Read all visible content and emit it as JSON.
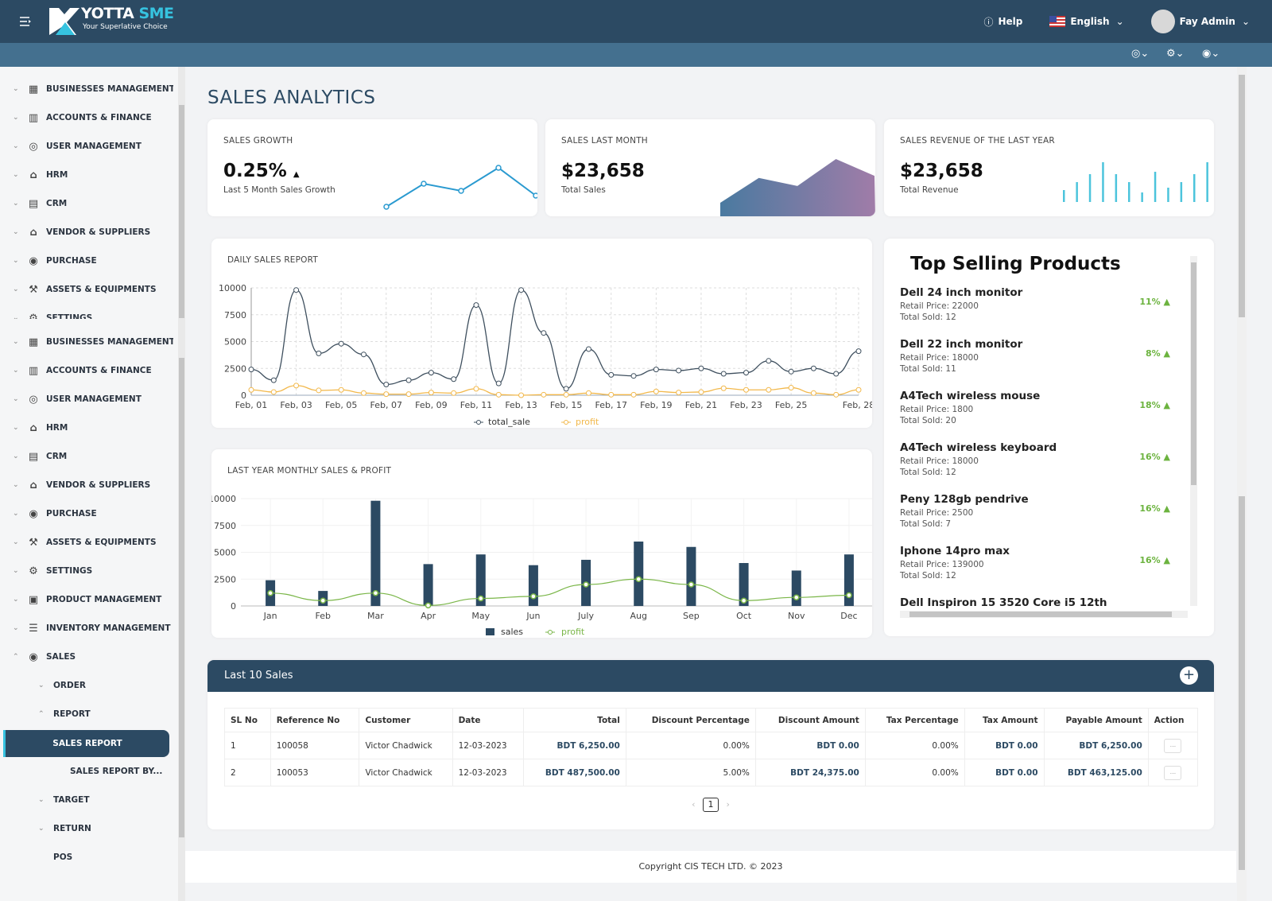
{
  "header": {
    "brand_main": "YOTTA",
    "brand_accent": "SME",
    "tagline": "Your Superlative Choice",
    "help": "Help",
    "language": "English",
    "user": "Fay Admin"
  },
  "colors": {
    "header": "#2c4a63",
    "subbar": "#44708f",
    "accent": "#36c3e0",
    "positive": "#6cb33f",
    "sales_line": "#3e4f5e",
    "profit_line": "#f2b84b",
    "bar": "#2c4a63",
    "profit_green": "#7ab648"
  },
  "sidebar": {
    "panel1": [
      {
        "label": "BUSINESSES MANAGEMENT",
        "icon": "building-icon"
      },
      {
        "label": "ACCOUNTS & FINANCE",
        "icon": "bar-chart-icon"
      },
      {
        "label": "USER MANAGEMENT",
        "icon": "user-circle-icon"
      },
      {
        "label": "HRM",
        "icon": "bank-icon"
      },
      {
        "label": "CRM",
        "icon": "contact-card-icon"
      },
      {
        "label": "VENDOR & SUPPLIERS",
        "icon": "store-icon"
      },
      {
        "label": "PURCHASE",
        "icon": "coin-icon"
      },
      {
        "label": "ASSETS & EQUIPMENTS",
        "icon": "assets-icon"
      },
      {
        "label": "SETTINGS",
        "icon": "gear-icon"
      }
    ],
    "panel2": [
      {
        "label": "BUSINESSES MANAGEMENT",
        "icon": "building-icon"
      },
      {
        "label": "ACCOUNTS & FINANCE",
        "icon": "bar-chart-icon"
      },
      {
        "label": "USER MANAGEMENT",
        "icon": "user-circle-icon"
      },
      {
        "label": "HRM",
        "icon": "bank-icon"
      },
      {
        "label": "CRM",
        "icon": "contact-card-icon"
      },
      {
        "label": "VENDOR & SUPPLIERS",
        "icon": "store-icon"
      },
      {
        "label": "PURCHASE",
        "icon": "coin-icon"
      },
      {
        "label": "ASSETS & EQUIPMENTS",
        "icon": "assets-icon"
      },
      {
        "label": "SETTINGS",
        "icon": "gear-icon"
      },
      {
        "label": "PRODUCT MANAGEMENT",
        "icon": "product-icon"
      },
      {
        "label": "INVENTORY MANAGEMENT",
        "icon": "inventory-icon"
      },
      {
        "label": "SALES",
        "icon": "sales-icon",
        "expanded": true
      }
    ],
    "sales_children": [
      {
        "label": "ORDER"
      },
      {
        "label": "REPORT",
        "expanded": true
      },
      {
        "label": "SALES REPORT",
        "active": true
      },
      {
        "label": "SALES REPORT BY..."
      },
      {
        "label": "TARGET"
      },
      {
        "label": "RETURN"
      },
      {
        "label": "POS"
      }
    ]
  },
  "page": {
    "title": "SALES ANALYTICS"
  },
  "cards": [
    {
      "title": "SALES GROWTH",
      "value": "0.25%",
      "subtitle": "Last 5 Month Sales Growth",
      "trend": "up",
      "sparkline": [
        0,
        29,
        20,
        49,
        14
      ]
    },
    {
      "title": "SALES LAST MONTH",
      "value": "$23,658",
      "subtitle": "Total Sales",
      "sparkline": [
        0,
        37,
        25,
        65,
        40
      ]
    },
    {
      "title": "SALES REVENUE OF THE LAST YEAR",
      "value": "$23,658",
      "subtitle": "Total Revenue",
      "sparkline": [
        15,
        25,
        35,
        50,
        35,
        25,
        12,
        38,
        18,
        25,
        35,
        50
      ]
    }
  ],
  "chart_data": [
    {
      "type": "line",
      "title": "DAILY SALES REPORT",
      "ylim": [
        0,
        10000
      ],
      "yticks": [
        "0",
        "2500",
        "5000",
        "7500",
        "10000"
      ],
      "x": [
        "Feb, 01",
        "Feb, 02",
        "Feb, 03",
        "Feb, 04",
        "Feb, 05",
        "Feb, 06",
        "Feb, 07",
        "Feb, 08",
        "Feb, 09",
        "Feb, 10",
        "Feb, 11",
        "Feb, 12",
        "Feb, 13",
        "Feb, 14",
        "Feb, 15",
        "Feb, 16",
        "Feb, 17",
        "Feb, 18",
        "Feb, 19",
        "Feb, 20",
        "Feb, 21",
        "Feb, 22",
        "Feb, 23",
        "Feb, 24",
        "Feb, 25",
        "Feb, 26",
        "Feb, 27",
        "Feb, 28"
      ],
      "xtick_labels": [
        "Feb, 01",
        "Feb, 03",
        "Feb, 05",
        "Feb, 07",
        "Feb, 09",
        "Feb, 11",
        "Feb, 13",
        "Feb, 15",
        "Feb, 17",
        "Feb, 19",
        "Feb, 21",
        "Feb, 23",
        "Feb, 25",
        "Feb, 28"
      ],
      "grid": true,
      "legend": "bottom",
      "series": [
        {
          "name": "total_sale",
          "values": [
            2400,
            1400,
            9800,
            3900,
            4800,
            3800,
            1000,
            1400,
            2100,
            1500,
            8400,
            1100,
            9800,
            5800,
            600,
            4300,
            1900,
            1800,
            2400,
            2300,
            2500,
            2000,
            2100,
            3200,
            2200,
            2500,
            2000,
            4100
          ]
        },
        {
          "name": "profit",
          "values": [
            500,
            300,
            900,
            450,
            500,
            200,
            100,
            100,
            250,
            200,
            600,
            50,
            0,
            50,
            50,
            200,
            50,
            50,
            350,
            250,
            300,
            650,
            500,
            500,
            700,
            200,
            50,
            500
          ]
        }
      ]
    },
    {
      "type": "bar",
      "title": "LAST YEAR MONTHLY SALES & PROFIT",
      "ylim": [
        0,
        10000
      ],
      "yticks": [
        "0",
        "2500",
        "5000",
        "7500",
        "10000"
      ],
      "categories": [
        "Jan",
        "Feb",
        "Mar",
        "Apr",
        "May",
        "Jun",
        "July",
        "Aug",
        "Sep",
        "Oct",
        "Nov",
        "Dec"
      ],
      "legend": "bottom",
      "series": [
        {
          "name": "sales",
          "values": [
            2400,
            1400,
            9800,
            3900,
            4800,
            3800,
            4300,
            6000,
            5500,
            4000,
            3300,
            4800
          ]
        },
        {
          "name": "profit",
          "type": "line",
          "values": [
            1200,
            500,
            1200,
            50,
            700,
            900,
            2000,
            2500,
            2000,
            500,
            800,
            1000
          ]
        }
      ]
    }
  ],
  "top_selling": {
    "title": "Top Selling Products",
    "items": [
      {
        "name": "Dell 24 inch monitor",
        "price": "Retail Price: 22000",
        "sold": "Total Sold: 12",
        "pct": "11% ▲"
      },
      {
        "name": "Dell 22 inch monitor",
        "price": "Retail Price: 18000",
        "sold": "Total Sold: 11",
        "pct": "8% ▲"
      },
      {
        "name": "A4Tech wireless mouse",
        "price": "Retail Price: 1800",
        "sold": "Total Sold: 20",
        "pct": "18% ▲"
      },
      {
        "name": "A4Tech wireless keyboard",
        "price": "Retail Price: 18000",
        "sold": "Total Sold: 12",
        "pct": "16% ▲"
      },
      {
        "name": "Peny 128gb pendrive",
        "price": "Retail Price: 2500",
        "sold": "Total Sold: 7",
        "pct": "16% ▲"
      },
      {
        "name": "Iphone 14pro max",
        "price": "Retail Price: 139000",
        "sold": "Total Sold: 12",
        "pct": "16% ▲"
      },
      {
        "name": "Dell Inspiron 15 3520 Core i5 12th",
        "price": "",
        "sold": "",
        "pct": ""
      }
    ]
  },
  "sales_table": {
    "title": "Last 10 Sales",
    "columns": [
      "SL No",
      "Reference No",
      "Customer",
      "Date",
      "Total",
      "Discount Percentage",
      "Discount Amount",
      "Tax Percentage",
      "Tax Amount",
      "Payable Amount",
      "Action"
    ],
    "rows": [
      [
        "1",
        "100058",
        "Victor Chadwick",
        "12-03-2023",
        "BDT 6,250.00",
        "0.00%",
        "BDT 0.00",
        "0.00%",
        "BDT 0.00",
        "BDT 6,250.00",
        "..."
      ],
      [
        "2",
        "100053",
        "Victor Chadwick",
        "12-03-2023",
        "BDT 487,500.00",
        "5.00%",
        "BDT 24,375.00",
        "0.00%",
        "BDT 0.00",
        "BDT 463,125.00",
        "..."
      ]
    ],
    "page": "1"
  },
  "footer": "Copyright CIS TECH LTD. © 2023"
}
